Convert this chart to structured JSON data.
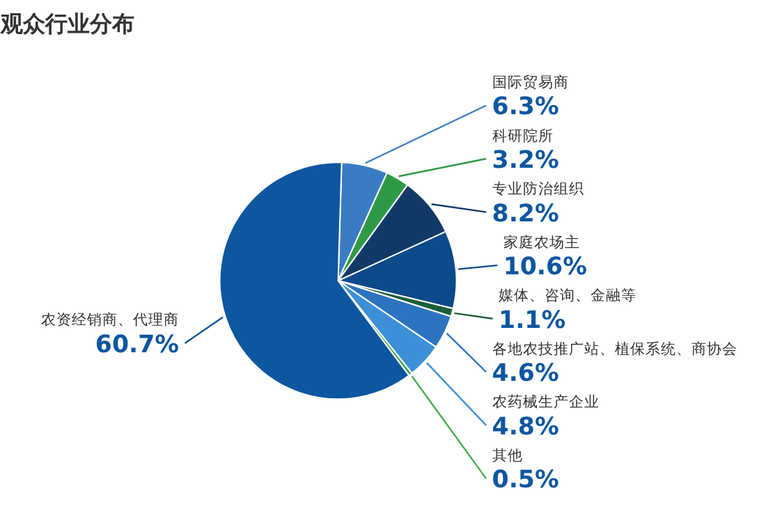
{
  "chart_data": {
    "type": "pie",
    "title": "观众行业分布",
    "categories": [
      "国际贸易商",
      "科研院所",
      "专业防治组织",
      "家庭农场主",
      "媒体、咨询、金融等",
      "各地农技推广站、植保系统、商协会",
      "农药械生产企业",
      "其他",
      "农资经销商、代理商"
    ],
    "values": [
      6.3,
      3.2,
      8.2,
      10.6,
      1.1,
      4.6,
      4.8,
      0.5,
      60.7
    ],
    "value_labels": [
      "6.3%",
      "3.2%",
      "8.2%",
      "10.6%",
      "1.1%",
      "4.6%",
      "4.8%",
      "0.5%",
      "60.7%"
    ],
    "colors": [
      "#3a7cc4",
      "#2e9a48",
      "#123a68",
      "#0d4a8a",
      "#1b5e3a",
      "#2c74bf",
      "#3d8fd8",
      "#4aaa50",
      "#0d56a0"
    ]
  }
}
